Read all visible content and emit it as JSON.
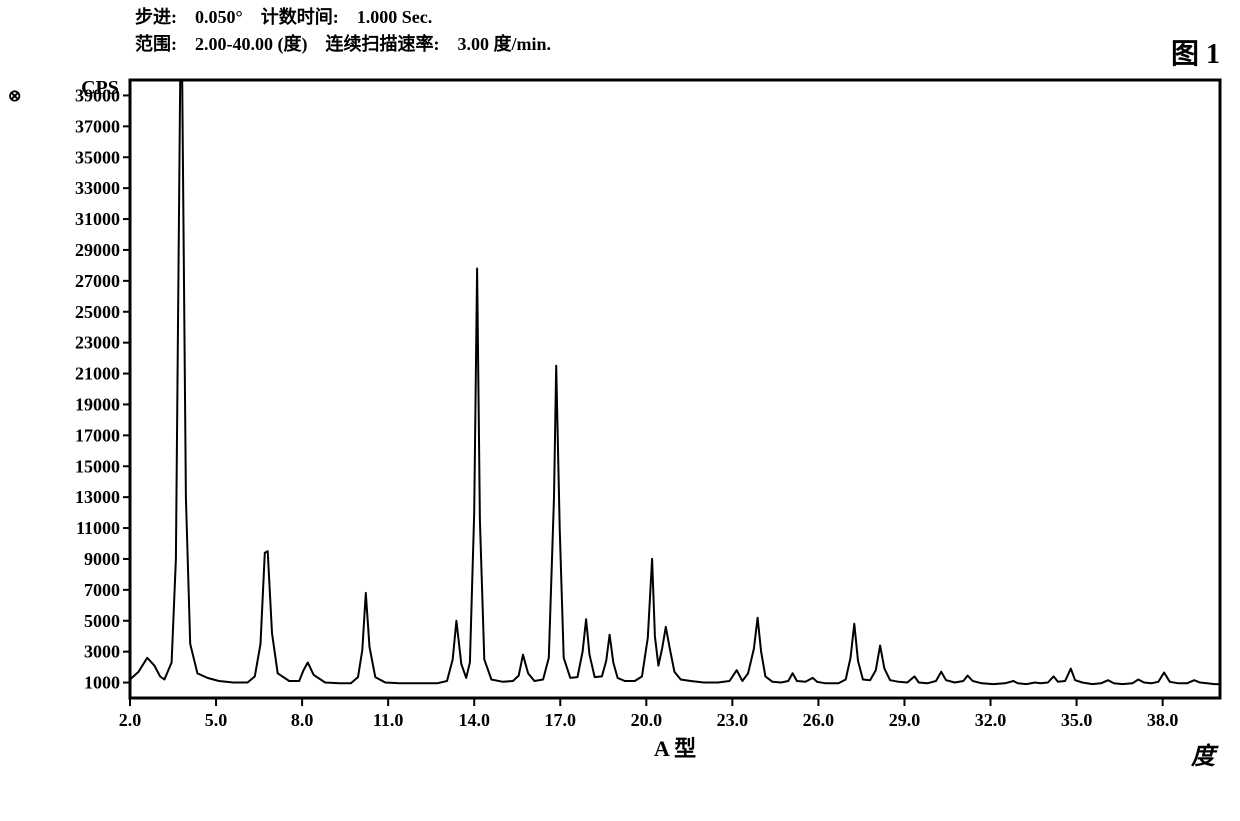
{
  "header": {
    "step_label": "步进:",
    "step_value": "0.050°",
    "count_time_label": "计数时间:",
    "count_time_value": "1.000 Sec.",
    "range_label": "范围:",
    "range_value": "2.00-40.00 (度)",
    "scan_rate_label": "连续扫描速率:",
    "scan_rate_value": "3.00 度/min."
  },
  "figure_label": "图 1",
  "side_glyph": "⊗",
  "chart": {
    "type": "line",
    "y_axis_label": "CPS",
    "x_axis_unit_label": "度",
    "sub_label": "A 型",
    "xlim": [
      2.0,
      40.0
    ],
    "ylim": [
      0,
      40000
    ],
    "xticks": [
      2.0,
      5.0,
      8.0,
      11.0,
      14.0,
      17.0,
      20.0,
      23.0,
      26.0,
      29.0,
      32.0,
      35.0,
      38.0
    ],
    "yticks": [
      1000,
      3000,
      5000,
      7000,
      9000,
      11000,
      13000,
      15000,
      17000,
      19000,
      21000,
      23000,
      25000,
      27000,
      29000,
      31000,
      33000,
      35000,
      37000,
      39000
    ],
    "line_color": "#000000",
    "line_width": 2.0,
    "axis_color": "#000000",
    "axis_width": 3.0,
    "tick_font_size": 18,
    "tick_font_weight": "bold",
    "background": "#ffffff",
    "data": [
      [
        2.0,
        1200
      ],
      [
        2.3,
        1700
      ],
      [
        2.6,
        2600
      ],
      [
        2.85,
        2100
      ],
      [
        3.05,
        1400
      ],
      [
        3.2,
        1200
      ],
      [
        3.45,
        2300
      ],
      [
        3.6,
        9000
      ],
      [
        3.75,
        40000
      ],
      [
        3.82,
        40000
      ],
      [
        3.95,
        13000
      ],
      [
        4.1,
        3500
      ],
      [
        4.35,
        1600
      ],
      [
        4.7,
        1300
      ],
      [
        5.1,
        1100
      ],
      [
        5.6,
        1000
      ],
      [
        6.1,
        1000
      ],
      [
        6.35,
        1400
      ],
      [
        6.55,
        3500
      ],
      [
        6.7,
        9400
      ],
      [
        6.8,
        9500
      ],
      [
        6.95,
        4200
      ],
      [
        7.15,
        1600
      ],
      [
        7.55,
        1100
      ],
      [
        7.9,
        1100
      ],
      [
        8.05,
        1800
      ],
      [
        8.2,
        2300
      ],
      [
        8.4,
        1500
      ],
      [
        8.8,
        1000
      ],
      [
        9.3,
        950
      ],
      [
        9.7,
        950
      ],
      [
        9.95,
        1350
      ],
      [
        10.1,
        3100
      ],
      [
        10.22,
        6800
      ],
      [
        10.35,
        3300
      ],
      [
        10.55,
        1350
      ],
      [
        10.9,
        1000
      ],
      [
        11.4,
        950
      ],
      [
        12.1,
        950
      ],
      [
        12.7,
        950
      ],
      [
        13.05,
        1100
      ],
      [
        13.25,
        2500
      ],
      [
        13.38,
        5000
      ],
      [
        13.55,
        2200
      ],
      [
        13.72,
        1300
      ],
      [
        13.85,
        2300
      ],
      [
        14.0,
        12000
      ],
      [
        14.1,
        27800
      ],
      [
        14.2,
        11500
      ],
      [
        14.35,
        2500
      ],
      [
        14.6,
        1200
      ],
      [
        15.0,
        1050
      ],
      [
        15.35,
        1100
      ],
      [
        15.55,
        1450
      ],
      [
        15.7,
        2800
      ],
      [
        15.88,
        1600
      ],
      [
        16.1,
        1100
      ],
      [
        16.4,
        1200
      ],
      [
        16.6,
        2600
      ],
      [
        16.78,
        13000
      ],
      [
        16.86,
        21500
      ],
      [
        16.98,
        11000
      ],
      [
        17.12,
        2600
      ],
      [
        17.35,
        1300
      ],
      [
        17.6,
        1350
      ],
      [
        17.78,
        3000
      ],
      [
        17.9,
        5100
      ],
      [
        18.02,
        2800
      ],
      [
        18.2,
        1350
      ],
      [
        18.45,
        1400
      ],
      [
        18.6,
        2400
      ],
      [
        18.72,
        4100
      ],
      [
        18.85,
        2300
      ],
      [
        19.0,
        1300
      ],
      [
        19.25,
        1100
      ],
      [
        19.6,
        1100
      ],
      [
        19.85,
        1400
      ],
      [
        20.05,
        3900
      ],
      [
        20.2,
        9000
      ],
      [
        20.3,
        4000
      ],
      [
        20.42,
        2100
      ],
      [
        20.55,
        3200
      ],
      [
        20.68,
        4600
      ],
      [
        20.82,
        3200
      ],
      [
        20.98,
        1700
      ],
      [
        21.2,
        1200
      ],
      [
        21.55,
        1100
      ],
      [
        22.0,
        1000
      ],
      [
        22.5,
        1000
      ],
      [
        22.9,
        1100
      ],
      [
        23.15,
        1800
      ],
      [
        23.35,
        1100
      ],
      [
        23.55,
        1600
      ],
      [
        23.75,
        3200
      ],
      [
        23.88,
        5200
      ],
      [
        24.0,
        3000
      ],
      [
        24.15,
        1400
      ],
      [
        24.4,
        1050
      ],
      [
        24.7,
        1000
      ],
      [
        24.95,
        1100
      ],
      [
        25.1,
        1600
      ],
      [
        25.25,
        1100
      ],
      [
        25.55,
        1050
      ],
      [
        25.8,
        1300
      ],
      [
        25.95,
        1050
      ],
      [
        26.25,
        950
      ],
      [
        26.7,
        950
      ],
      [
        26.95,
        1200
      ],
      [
        27.12,
        2600
      ],
      [
        27.25,
        4800
      ],
      [
        27.38,
        2400
      ],
      [
        27.55,
        1200
      ],
      [
        27.8,
        1150
      ],
      [
        28.0,
        1800
      ],
      [
        28.15,
        3400
      ],
      [
        28.3,
        1900
      ],
      [
        28.5,
        1150
      ],
      [
        28.8,
        1050
      ],
      [
        29.1,
        1000
      ],
      [
        29.35,
        1400
      ],
      [
        29.5,
        1000
      ],
      [
        29.8,
        950
      ],
      [
        30.1,
        1100
      ],
      [
        30.28,
        1700
      ],
      [
        30.45,
        1150
      ],
      [
        30.75,
        1000
      ],
      [
        31.05,
        1100
      ],
      [
        31.2,
        1450
      ],
      [
        31.38,
        1100
      ],
      [
        31.7,
        950
      ],
      [
        32.1,
        900
      ],
      [
        32.5,
        950
      ],
      [
        32.8,
        1100
      ],
      [
        32.95,
        950
      ],
      [
        33.25,
        900
      ],
      [
        33.55,
        1000
      ],
      [
        33.75,
        950
      ],
      [
        34.0,
        1000
      ],
      [
        34.2,
        1400
      ],
      [
        34.35,
        1050
      ],
      [
        34.6,
        1100
      ],
      [
        34.8,
        1900
      ],
      [
        34.95,
        1150
      ],
      [
        35.2,
        1000
      ],
      [
        35.55,
        900
      ],
      [
        35.85,
        950
      ],
      [
        36.1,
        1150
      ],
      [
        36.3,
        950
      ],
      [
        36.6,
        900
      ],
      [
        36.95,
        950
      ],
      [
        37.15,
        1200
      ],
      [
        37.35,
        1000
      ],
      [
        37.6,
        950
      ],
      [
        37.85,
        1050
      ],
      [
        38.05,
        1650
      ],
      [
        38.25,
        1050
      ],
      [
        38.55,
        950
      ],
      [
        38.85,
        950
      ],
      [
        39.1,
        1150
      ],
      [
        39.3,
        1000
      ],
      [
        39.55,
        950
      ],
      [
        39.8,
        900
      ],
      [
        40.0,
        900
      ]
    ]
  }
}
